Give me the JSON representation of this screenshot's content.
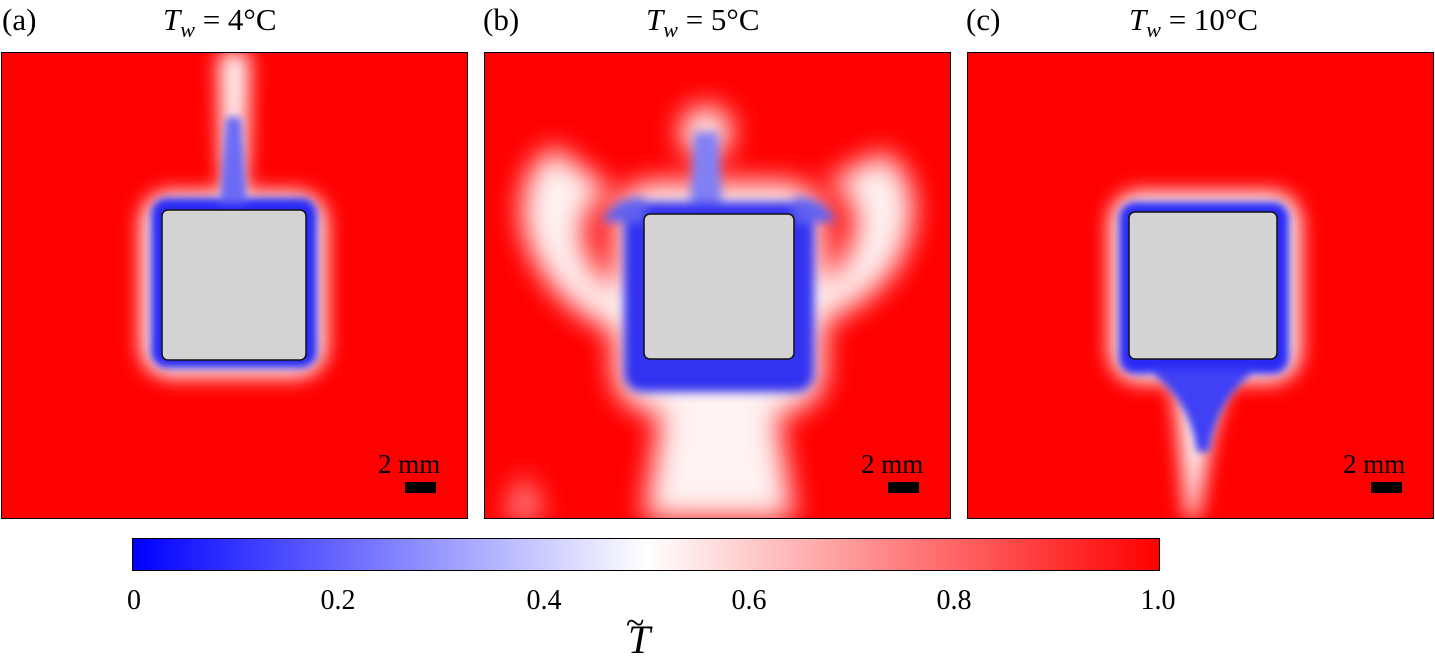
{
  "panels": [
    {
      "label": "(a)",
      "title_var": "T",
      "title_sub": "w",
      "title_value": " = 4°C",
      "scale": "2 mm"
    },
    {
      "label": "(b)",
      "title_var": "T",
      "title_sub": "w",
      "title_value": " = 5°C",
      "scale": "2 mm"
    },
    {
      "label": "(c)",
      "title_var": "T",
      "title_sub": "w",
      "title_value": " = 10°C",
      "scale": "2 mm"
    }
  ],
  "colorbar": {
    "ticks": [
      "0",
      "0.2",
      "0.4",
      "0.6",
      "0.8",
      "1.0"
    ],
    "label": "T",
    "label_accent": "~",
    "colors": {
      "min": "#0000ff",
      "mid": "#ffffff",
      "max": "#ff0000",
      "object": "#d3d3d3"
    }
  }
}
